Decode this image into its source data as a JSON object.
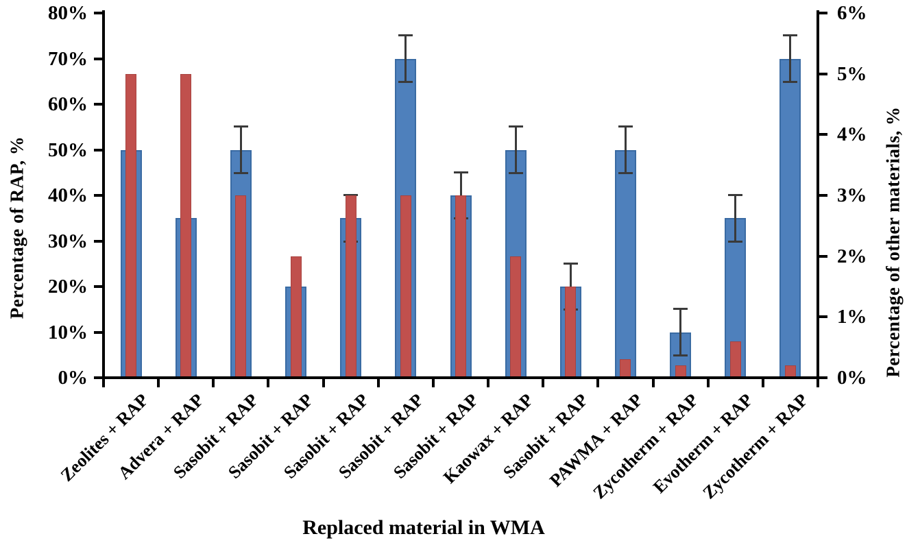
{
  "chart_data": {
    "type": "bar",
    "title": "",
    "xlabel": "Replaced material in WMA",
    "ylabel_left": "Percentage of RAP, %",
    "ylabel_right": "Percentage of other materials, %",
    "grid": false,
    "legend": false,
    "categories": [
      "Zeolites + RAP",
      "Advera + RAP",
      "Sasobit + RAP",
      "Sasobit + RAP",
      "Sasobit + RAP",
      "Sasobit + RAP",
      "Sasobit + RAP",
      "Kaowax + RAP",
      "Sasobit + RAP",
      "PAWMA + RAP",
      "Zycotherm + RAP",
      "Evotherm + RAP",
      "Zycotherm + RAP"
    ],
    "series": [
      {
        "id": "rap",
        "axis": "left",
        "unit": "%",
        "color": "#4e80bc",
        "border_color": "#3a6ba3",
        "values": [
          50,
          35,
          50,
          20,
          35,
          70,
          40,
          50,
          20,
          50,
          10,
          35,
          70
        ],
        "error_plus_minus": [
          null,
          null,
          5,
          null,
          5,
          5,
          5,
          5,
          5,
          5,
          5,
          5,
          5
        ]
      },
      {
        "id": "other_materials",
        "axis": "right",
        "unit": "%",
        "color": "#c0504d",
        "border_color": "#a8423f",
        "values": [
          5,
          5,
          3,
          2,
          3,
          3,
          3,
          2,
          1.5,
          0.3,
          0.2,
          0.6,
          0.2
        ]
      }
    ],
    "left_axis": {
      "min": 0,
      "max": 80,
      "tick_labels": [
        "0%",
        "10%",
        "20%",
        "30%",
        "40%",
        "50%",
        "60%",
        "70%",
        "80%"
      ]
    },
    "right_axis": {
      "min": 0,
      "max": 6,
      "tick_labels": [
        "0%",
        "1%",
        "2%",
        "3%",
        "4%",
        "5%",
        "6%"
      ]
    },
    "error_bar_color": "#3a3a3a",
    "axis_color": "#000000"
  }
}
